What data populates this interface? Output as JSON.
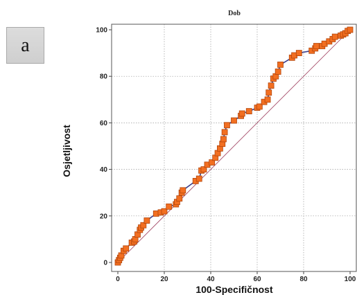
{
  "panel_label": "a",
  "chart_data": {
    "type": "line",
    "title": "Dob",
    "xlabel": "100-Specifičnost",
    "ylabel": "Osjetljivost",
    "xlim": [
      0,
      100
    ],
    "ylim": [
      0,
      100
    ],
    "xticks": [
      0,
      20,
      40,
      60,
      80,
      100
    ],
    "yticks": [
      0,
      20,
      40,
      60,
      80,
      100
    ],
    "grid": true,
    "colors": {
      "curve": "#3a3e8c",
      "marker": "#f26f21",
      "marker_edge": "#b2450c",
      "diagonal": "#9c3a5a"
    },
    "series": [
      {
        "x": [
          0,
          0.5,
          1,
          1.5,
          2.5,
          3.5,
          6,
          7,
          7.5,
          8.5,
          9.5,
          10,
          11,
          12.5,
          16.5,
          18.5,
          20,
          22,
          25,
          25.5,
          26.5,
          27.5,
          28,
          33.5,
          35,
          36,
          37,
          38.5,
          40.5,
          42,
          43,
          44,
          45,
          45.5,
          46,
          47,
          50,
          53,
          53.5,
          56.5,
          60,
          61,
          63,
          64.5,
          65,
          66,
          67,
          68,
          69,
          70,
          75,
          76,
          78,
          83.5,
          85,
          85.5,
          88,
          89,
          91,
          92.5,
          93.5,
          96,
          97,
          98,
          99,
          100
        ],
        "y": [
          0,
          1,
          2,
          3,
          5,
          6,
          8.5,
          9,
          10,
          12,
          14,
          15,
          16,
          18,
          21,
          21.5,
          22,
          24,
          25,
          26,
          27.5,
          30,
          31,
          35,
          36,
          39.5,
          40,
          42,
          43,
          45,
          47,
          49,
          51,
          53,
          56,
          59,
          61,
          63,
          64,
          65,
          66.5,
          67,
          69,
          70,
          73,
          76,
          79,
          80,
          82,
          85,
          88,
          89,
          90,
          91,
          92,
          93,
          93,
          94,
          95,
          96,
          97,
          97.5,
          98,
          98.5,
          99.5,
          100
        ]
      }
    ]
  }
}
